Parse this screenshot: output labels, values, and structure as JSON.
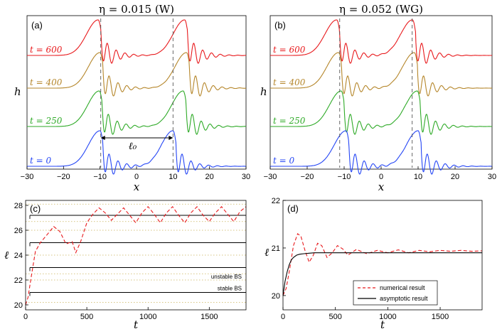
{
  "chart_data": [
    {
      "id": "a",
      "type": "line",
      "panel_label": "(a)",
      "title": "η = 0.015 (W)",
      "xlabel": "x",
      "ylabel": "h",
      "xlim": [
        -30,
        30
      ],
      "xticks": [
        -30,
        -20,
        -10,
        0,
        10,
        20,
        30
      ],
      "xtick_labels": [
        "−30",
        "−20",
        "−10",
        "0",
        "10",
        "20",
        "30"
      ],
      "vlines": [
        -9.8,
        10
      ],
      "distance_label": "ℓ₀",
      "distance_from": -9.8,
      "distance_to": 10,
      "series": [
        {
          "name": "t = 600",
          "color": "#e8191c",
          "pulses": [
            -10.5,
            13.2
          ]
        },
        {
          "name": "t = 400",
          "color": "#b5862a",
          "pulses": [
            -10.0,
            13.7
          ]
        },
        {
          "name": "t = 250",
          "color": "#2eaa27",
          "pulses": [
            -10.2,
            12.8
          ]
        },
        {
          "name": "t = 0",
          "color": "#2546f5",
          "pulses": [
            -10.0,
            10.0
          ]
        }
      ]
    },
    {
      "id": "b",
      "type": "line",
      "panel_label": "(b)",
      "title": "η = 0.052 (WG)",
      "xlabel": "x",
      "ylabel": "h",
      "xlim": [
        -30,
        30
      ],
      "xticks": [
        -30,
        -20,
        -10,
        0,
        10,
        20,
        30
      ],
      "xtick_labels": [
        "−30",
        "−20",
        "−10",
        "0",
        "10",
        "20",
        "30"
      ],
      "vlines": [
        -11.2,
        8.4
      ],
      "series": [
        {
          "name": "t = 600",
          "color": "#e8191c",
          "pulses": [
            -12.0,
            8.5
          ]
        },
        {
          "name": "t = 400",
          "color": "#b5862a",
          "pulses": [
            -11.5,
            9.0
          ]
        },
        {
          "name": "t = 250",
          "color": "#2eaa27",
          "pulses": [
            -10.8,
            9.8
          ]
        },
        {
          "name": "t = 0",
          "color": "#2546f5",
          "pulses": [
            -9.5,
            10.0
          ]
        }
      ]
    },
    {
      "id": "c",
      "type": "line",
      "panel_label": "(c)",
      "xlabel": "t",
      "ylabel": "ℓ",
      "xlim": [
        0,
        1800
      ],
      "ylim": [
        19.6,
        28.4
      ],
      "xticks": [
        0,
        500,
        1000,
        1500
      ],
      "yticks": [
        20,
        22,
        24,
        26,
        28
      ],
      "solid_levels": [
        21.0,
        23.0,
        25.0,
        27.2
      ],
      "dotted_levels": [
        20.2,
        22.0,
        22.5,
        24.0,
        26.0,
        26.7,
        28.1
      ],
      "annotations": [
        {
          "text": "unstable BS",
          "value": 21.95
        },
        {
          "text": "stable BS",
          "value": 21.0
        }
      ],
      "series": [
        {
          "name": "numerical result",
          "style": "dashed",
          "color": "#e8191c",
          "x": [
            0,
            20,
            50,
            80,
            120,
            180,
            230,
            280,
            330,
            380,
            410,
            450,
            500,
            550,
            600,
            650,
            700,
            750,
            800,
            850,
            900,
            950,
            1000,
            1050,
            1100,
            1150,
            1200,
            1250,
            1300,
            1350,
            1400,
            1450,
            1500,
            1550,
            1600,
            1650,
            1700,
            1750,
            1800
          ],
          "y": [
            20.0,
            20.6,
            22.5,
            24.3,
            25.0,
            25.7,
            26.3,
            25.9,
            24.9,
            25.1,
            24.2,
            25.1,
            26.6,
            27.3,
            27.8,
            27.4,
            26.8,
            27.3,
            27.8,
            27.2,
            26.6,
            27.4,
            27.9,
            27.3,
            26.6,
            27.4,
            27.9,
            27.2,
            26.6,
            27.4,
            27.9,
            27.2,
            26.7,
            27.4,
            27.9,
            27.3,
            26.7,
            27.5,
            27.9
          ]
        }
      ]
    },
    {
      "id": "d",
      "type": "line",
      "panel_label": "(d)",
      "xlabel": "t",
      "ylabel": "ℓ",
      "xlim": [
        0,
        1900
      ],
      "ylim": [
        19.7,
        22.0
      ],
      "xticks": [
        0,
        500,
        1000,
        1500
      ],
      "yticks": [
        20,
        21,
        22
      ],
      "legend": {
        "position": "bottom-center",
        "entries": [
          "numerical result",
          "asymptotic result"
        ]
      },
      "series": [
        {
          "name": "numerical result",
          "style": "dashed",
          "color": "#e8191c",
          "x": [
            0,
            30,
            60,
            100,
            140,
            170,
            210,
            250,
            290,
            330,
            370,
            420,
            470,
            520,
            570,
            620,
            700,
            800,
            900,
            1000,
            1100,
            1200,
            1300,
            1400,
            1500,
            1600,
            1700,
            1800,
            1900
          ],
          "y": [
            20.0,
            20.15,
            20.5,
            21.05,
            21.3,
            21.25,
            20.95,
            20.7,
            20.85,
            21.1,
            21.05,
            20.8,
            20.9,
            21.05,
            20.98,
            20.85,
            20.97,
            20.88,
            20.95,
            20.9,
            20.96,
            20.9,
            20.95,
            20.92,
            20.95,
            20.93,
            20.95,
            20.93,
            20.94
          ]
        },
        {
          "name": "asymptotic result",
          "style": "solid",
          "color": "#000000",
          "x": [
            0,
            20,
            40,
            60,
            80,
            100,
            130,
            160,
            200,
            250,
            300,
            400,
            600,
            1000,
            1500,
            1900
          ],
          "y": [
            20.0,
            20.3,
            20.5,
            20.65,
            20.75,
            20.8,
            20.85,
            20.87,
            20.88,
            20.89,
            20.9,
            20.9,
            20.9,
            20.9,
            20.9,
            20.9
          ]
        }
      ]
    }
  ]
}
